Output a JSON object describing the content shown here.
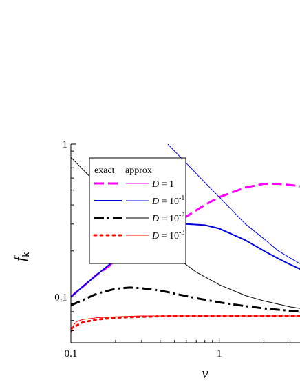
{
  "chart_data": {
    "type": "line",
    "title": "",
    "xlabel": "v",
    "ylabel": {
      "main": "f",
      "sub": "k"
    },
    "x_scale": "log",
    "y_scale": "log",
    "xlim": [
      0.1,
      3.5
    ],
    "ylim": [
      0.05,
      1
    ],
    "x_ticks": [
      {
        "value": 0.1,
        "label": "0.1"
      },
      {
        "value": 1,
        "label": "1"
      }
    ],
    "y_ticks": [
      {
        "value": 0.1,
        "label": "0.1"
      },
      {
        "value": 1,
        "label": "1"
      }
    ],
    "grid": false,
    "legend": {
      "position": "top-left",
      "header_exact": "exact",
      "header_approx": "approx",
      "entries": [
        {
          "prefix": "D = ",
          "base": "1",
          "exp": ""
        },
        {
          "prefix": "D = ",
          "base": "10",
          "exp": "-1"
        },
        {
          "prefix": "D = ",
          "base": "10",
          "exp": "-2"
        },
        {
          "prefix": "D = ",
          "base": "10",
          "exp": "-3"
        }
      ]
    },
    "series": [
      {
        "legend_index": 0,
        "kind": "exact",
        "color": "#ff00ff",
        "dash": "dashed",
        "width": 3,
        "x": [
          0.1,
          0.15,
          0.2,
          0.3,
          0.5,
          0.8,
          1.0,
          1.5,
          2.0,
          2.5,
          3.0,
          3.5
        ],
        "y": [
          0.1,
          0.14,
          0.17,
          0.22,
          0.3,
          0.4,
          0.45,
          0.52,
          0.55,
          0.55,
          0.54,
          0.53
        ]
      },
      {
        "legend_index": 0,
        "kind": "approx",
        "color": "#ff00ff",
        "dash": "solid",
        "width": 1,
        "x": [
          0.1,
          0.15,
          0.2,
          0.3
        ],
        "y": [
          0.1,
          0.14,
          0.17,
          0.22
        ]
      },
      {
        "legend_index": 1,
        "kind": "exact",
        "color": "#0000dd",
        "dash": "solid",
        "width": 2,
        "x": [
          0.1,
          0.15,
          0.2,
          0.3,
          0.4,
          0.5,
          0.6,
          0.8,
          1.0,
          1.5,
          2.0,
          2.5,
          3.0,
          3.5
        ],
        "y": [
          0.1,
          0.14,
          0.175,
          0.23,
          0.27,
          0.29,
          0.3,
          0.295,
          0.28,
          0.235,
          0.2,
          0.178,
          0.163,
          0.152
        ]
      },
      {
        "legend_index": 1,
        "kind": "approx",
        "color": "#0000dd",
        "dash": "solid",
        "width": 1,
        "x": [
          0.45,
          0.5,
          0.6,
          0.8,
          1.0,
          1.5,
          2.0,
          2.5,
          3.0,
          3.5
        ],
        "y": [
          1.0,
          0.9,
          0.75,
          0.56,
          0.45,
          0.3,
          0.24,
          0.2,
          0.18,
          0.165
        ]
      },
      {
        "legend_index": 2,
        "kind": "exact",
        "color": "#000000",
        "dash": "dashdot",
        "width": 3,
        "x": [
          0.1,
          0.15,
          0.2,
          0.25,
          0.3,
          0.4,
          0.5,
          0.7,
          1.0,
          1.5,
          2.0,
          3.0,
          3.5
        ],
        "y": [
          0.088,
          0.105,
          0.113,
          0.115,
          0.114,
          0.11,
          0.105,
          0.098,
          0.092,
          0.087,
          0.084,
          0.081,
          0.08
        ]
      },
      {
        "legend_index": 2,
        "kind": "approx",
        "color": "#000000",
        "dash": "solid",
        "width": 1,
        "x": [
          0.1,
          0.15,
          0.2,
          0.3,
          0.5,
          0.7,
          1.0,
          1.5,
          2.0,
          3.0,
          3.5
        ],
        "y": [
          0.82,
          0.55,
          0.42,
          0.29,
          0.185,
          0.145,
          0.12,
          0.102,
          0.094,
          0.086,
          0.084
        ]
      },
      {
        "legend_index": 3,
        "kind": "exact",
        "color": "#ff0000",
        "dash": "dotted",
        "width": 3,
        "x": [
          0.1,
          0.12,
          0.15,
          0.2,
          0.3,
          0.5,
          1.0,
          2.0,
          3.5
        ],
        "y": [
          0.062,
          0.068,
          0.071,
          0.073,
          0.074,
          0.075,
          0.075,
          0.075,
          0.075
        ]
      },
      {
        "legend_index": 3,
        "kind": "approx",
        "color": "#ff0000",
        "dash": "solid",
        "width": 1,
        "x": [
          0.1,
          0.105,
          0.11,
          0.12,
          0.15,
          0.2,
          0.3,
          0.5,
          1.0,
          2.0,
          3.5
        ],
        "y": [
          0.058,
          0.066,
          0.069,
          0.071,
          0.073,
          0.074,
          0.075,
          0.075,
          0.075,
          0.075,
          0.075
        ]
      }
    ]
  }
}
